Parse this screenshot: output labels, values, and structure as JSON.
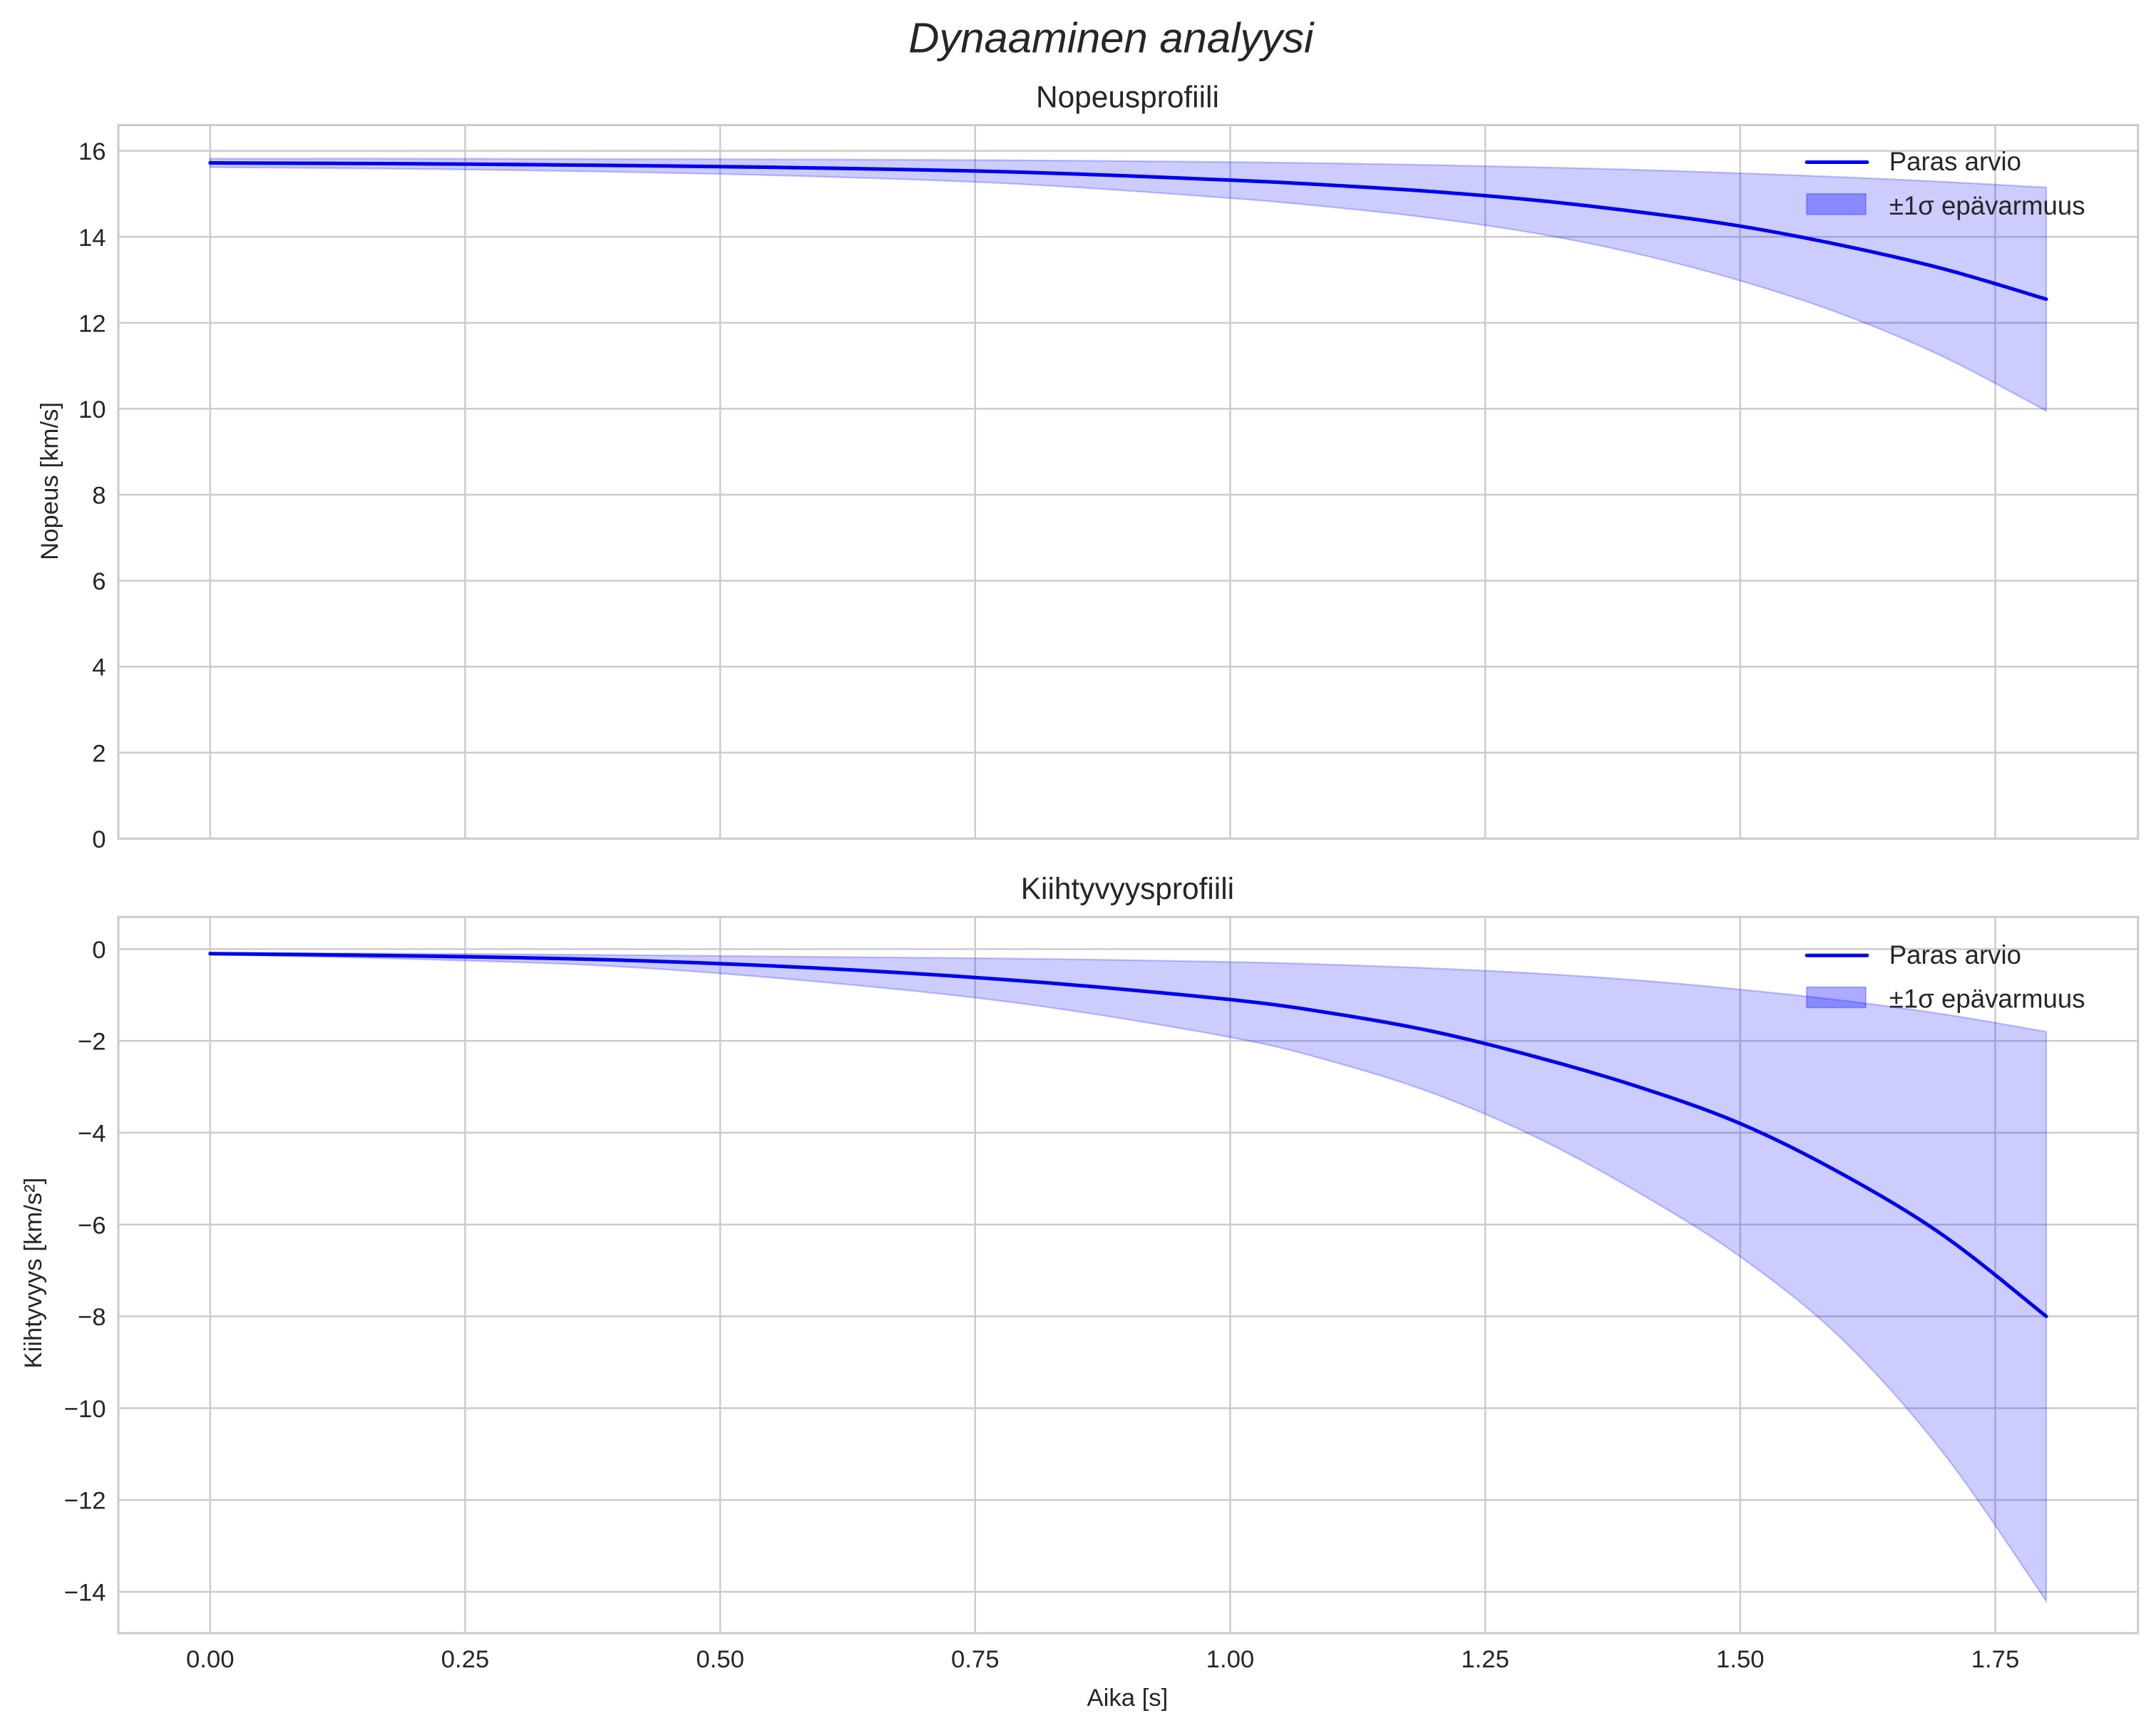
{
  "figure": {
    "suptitle": "Dynaaminen analyysi",
    "xlabel": "Aika [s]",
    "colors": {
      "line": "#0000ee",
      "band": "#0000ff",
      "band_alpha": 0.2,
      "grid": "#cccccc",
      "text": "#262626"
    }
  },
  "chart_data": [
    {
      "type": "line",
      "title": "Nopeusprofiili",
      "xlabel": "Aika [s]",
      "ylabel": "Nopeus [km/s]",
      "xlim": [
        -0.09,
        1.89
      ],
      "ylim": [
        0,
        16.6
      ],
      "xticks": [
        0.0,
        0.25,
        0.5,
        0.75,
        1.0,
        1.25,
        1.5,
        1.75
      ],
      "xtick_labels": [
        "0.00",
        "0.25",
        "0.50",
        "0.75",
        "1.00",
        "1.25",
        "1.50",
        "1.75"
      ],
      "yticks": [
        0,
        2,
        4,
        6,
        8,
        10,
        12,
        14,
        16
      ],
      "ytick_labels": [
        "0",
        "2",
        "4",
        "6",
        "8",
        "10",
        "12",
        "14",
        "16"
      ],
      "grid": true,
      "legend_position": "upper right",
      "legend": [
        "Paras arvio",
        "±1σ epävarmuus"
      ],
      "x": [
        0.0,
        0.2,
        0.4,
        0.6,
        0.8,
        1.0,
        1.1,
        1.2,
        1.3,
        1.4,
        1.5,
        1.6,
        1.7,
        1.8
      ],
      "series": [
        {
          "name": "Paras arvio",
          "values": [
            15.72,
            15.7,
            15.66,
            15.6,
            15.5,
            15.32,
            15.2,
            15.05,
            14.85,
            14.58,
            14.25,
            13.8,
            13.25,
            12.55
          ]
        },
        {
          "name": "±1σ upper",
          "values": [
            15.82,
            15.82,
            15.81,
            15.8,
            15.78,
            15.74,
            15.71,
            15.67,
            15.62,
            15.56,
            15.48,
            15.39,
            15.28,
            15.15
          ]
        },
        {
          "name": "±1σ lower",
          "values": [
            15.62,
            15.58,
            15.51,
            15.4,
            15.22,
            14.9,
            14.69,
            14.43,
            14.08,
            13.6,
            12.98,
            12.2,
            11.2,
            9.95
          ]
        }
      ]
    },
    {
      "type": "line",
      "title": "Kiihtyvyysprofiili",
      "xlabel": "Aika [s]",
      "ylabel": "Kiihtyvyys [km/s²]",
      "xlim": [
        -0.09,
        1.89
      ],
      "ylim": [
        -14.9,
        0.7
      ],
      "xticks": [
        0.0,
        0.25,
        0.5,
        0.75,
        1.0,
        1.25,
        1.5,
        1.75
      ],
      "xtick_labels": [
        "0.00",
        "0.25",
        "0.50",
        "0.75",
        "1.00",
        "1.25",
        "1.50",
        "1.75"
      ],
      "yticks": [
        0,
        -2,
        -4,
        -6,
        -8,
        -10,
        -12,
        -14
      ],
      "ytick_labels": [
        "0",
        "−2",
        "−4",
        "−6",
        "−8",
        "−10",
        "−12",
        "−14"
      ],
      "grid": true,
      "legend_position": "upper right",
      "legend": [
        "Paras arvio",
        "±1σ epävarmuus"
      ],
      "x": [
        0.0,
        0.2,
        0.4,
        0.6,
        0.8,
        1.0,
        1.1,
        1.2,
        1.3,
        1.4,
        1.5,
        1.6,
        1.7,
        1.8
      ],
      "series": [
        {
          "name": "Paras arvio",
          "values": [
            -0.1,
            -0.15,
            -0.24,
            -0.42,
            -0.7,
            -1.1,
            -1.4,
            -1.8,
            -2.35,
            -3.0,
            -3.8,
            -4.9,
            -6.25,
            -8.0
          ]
        },
        {
          "name": "±1σ upper",
          "values": [
            -0.08,
            -0.1,
            -0.13,
            -0.17,
            -0.21,
            -0.28,
            -0.34,
            -0.42,
            -0.53,
            -0.68,
            -0.88,
            -1.12,
            -1.42,
            -1.8
          ]
        },
        {
          "name": "±1σ lower",
          "values": [
            -0.12,
            -0.22,
            -0.38,
            -0.72,
            -1.2,
            -1.92,
            -2.45,
            -3.15,
            -4.1,
            -5.3,
            -6.7,
            -8.5,
            -11.0,
            -14.2
          ]
        }
      ]
    }
  ]
}
